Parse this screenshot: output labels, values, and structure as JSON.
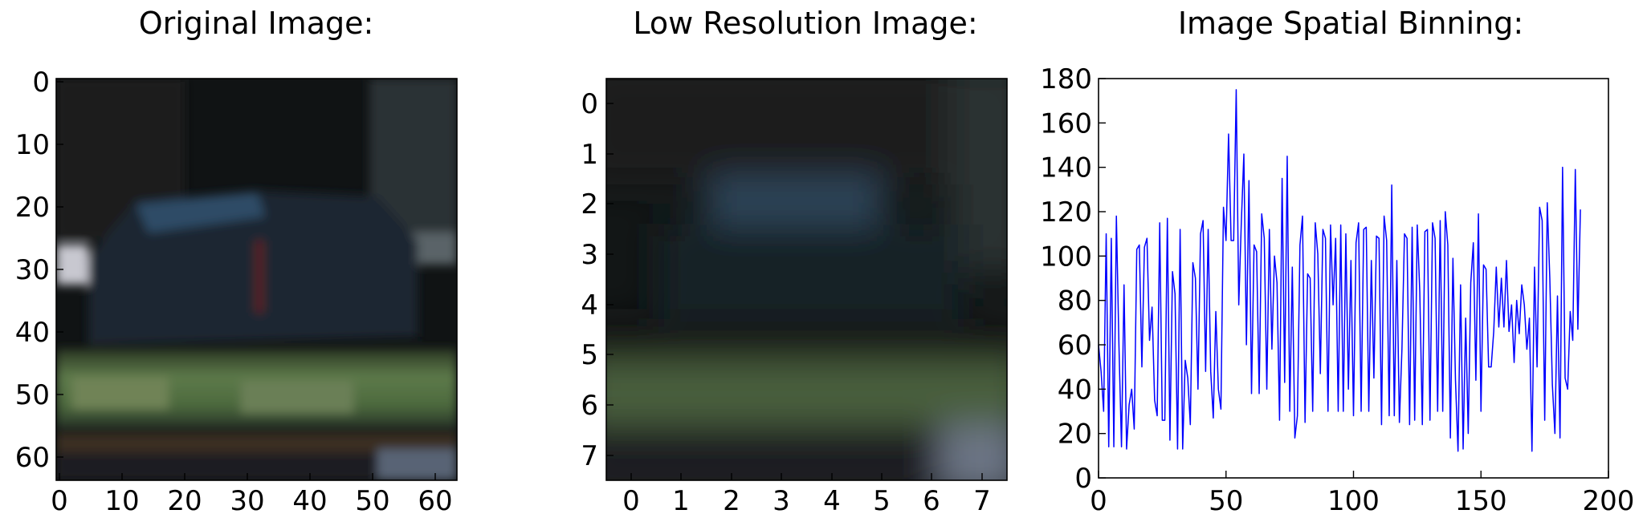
{
  "chart_data": [
    {
      "type": "heatmap",
      "title": "Original Image:",
      "xticks": [
        0,
        10,
        20,
        30,
        40,
        50,
        60
      ],
      "yticks": [
        0,
        10,
        20,
        30,
        40,
        50,
        60
      ],
      "xlim": [
        -0.5,
        63.5
      ],
      "ylim": [
        63.5,
        -0.5
      ],
      "xlabel": "",
      "ylabel": ""
    },
    {
      "type": "heatmap",
      "title": "Low Resolution Image:",
      "xticks": [
        0,
        1,
        2,
        3,
        4,
        5,
        6,
        7
      ],
      "yticks": [
        0,
        1,
        2,
        3,
        4,
        5,
        6,
        7
      ],
      "xlim": [
        -0.5,
        7.5
      ],
      "ylim": [
        7.5,
        -0.5
      ],
      "xlabel": "",
      "ylabel": ""
    },
    {
      "type": "line",
      "title": "Image Spatial Binning:",
      "xlim": [
        0,
        200
      ],
      "ylim": [
        0,
        180
      ],
      "xticks": [
        0,
        50,
        100,
        150,
        200
      ],
      "yticks": [
        0,
        20,
        40,
        60,
        80,
        100,
        120,
        140,
        160,
        180
      ],
      "xlabel": "",
      "ylabel": "",
      "line_color": "#0000ff",
      "series": [
        {
          "values": [
            60,
            48,
            30,
            110,
            14,
            108,
            14,
            118,
            60,
            14,
            87,
            13,
            33,
            40,
            22,
            103,
            105,
            50,
            104,
            108,
            62,
            77,
            35,
            28,
            115,
            26,
            26,
            117,
            17,
            93,
            83,
            13,
            112,
            13,
            53,
            45,
            24,
            97,
            90,
            40,
            110,
            116,
            48,
            112,
            48,
            27,
            75,
            40,
            31,
            122,
            107,
            155,
            107,
            107,
            175,
            78,
            115,
            146,
            60,
            134,
            38,
            105,
            102,
            38,
            119,
            108,
            40,
            112,
            58,
            100,
            88,
            26,
            135,
            43,
            145,
            30,
            95,
            18,
            28,
            105,
            118,
            25,
            92,
            90,
            30,
            115,
            101,
            47,
            112,
            108,
            30,
            114,
            78,
            108,
            30,
            114,
            30,
            110,
            40,
            98,
            28,
            106,
            115,
            30,
            112,
            113,
            30,
            98,
            45,
            109,
            108,
            24,
            118,
            107,
            28,
            132,
            28,
            98,
            25,
            58,
            110,
            108,
            24,
            113,
            26,
            114,
            84,
            24,
            111,
            112,
            26,
            115,
            108,
            30,
            116,
            30,
            120,
            105,
            18,
            99,
            44,
            12,
            87,
            13,
            72,
            20,
            88,
            106,
            44,
            119,
            30,
            96,
            94,
            50,
            50,
            66,
            95,
            68,
            90,
            68,
            98,
            66,
            78,
            52,
            80,
            65,
            87,
            78,
            58,
            72,
            12,
            95,
            50,
            122,
            116,
            26,
            124,
            90,
            42,
            20,
            82,
            18,
            140,
            45,
            40,
            75,
            62,
            139,
            67,
            121
          ]
        }
      ]
    }
  ]
}
